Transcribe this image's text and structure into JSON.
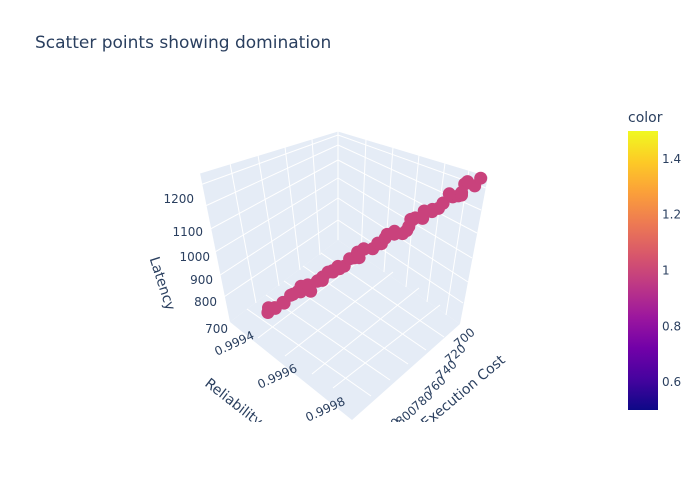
{
  "chart_data": {
    "type": "scatter3d",
    "title": "Scatter points showing domination",
    "axes": {
      "x": {
        "title": "Execution Cost",
        "ticks": [
          "700",
          "720",
          "740",
          "760",
          "780",
          "800",
          "820"
        ]
      },
      "y": {
        "title": "Reliability",
        "ticks": [
          "0.9994",
          "0.9996",
          "0.9998"
        ]
      },
      "z": {
        "title": "Latency",
        "ticks": [
          "700",
          "800",
          "900",
          "1000",
          "1100",
          "1200"
        ]
      }
    },
    "colorbar": {
      "title": "color",
      "range": [
        0.5,
        1.5
      ],
      "ticks": [
        "0.6",
        "0.8",
        "1",
        "1.2",
        "1.4"
      ],
      "tick_values": [
        0.6,
        0.8,
        1.0,
        1.2,
        1.4
      ]
    },
    "marker_color_value": 1,
    "marker_color": "#c9427c",
    "point_count": 60
  }
}
